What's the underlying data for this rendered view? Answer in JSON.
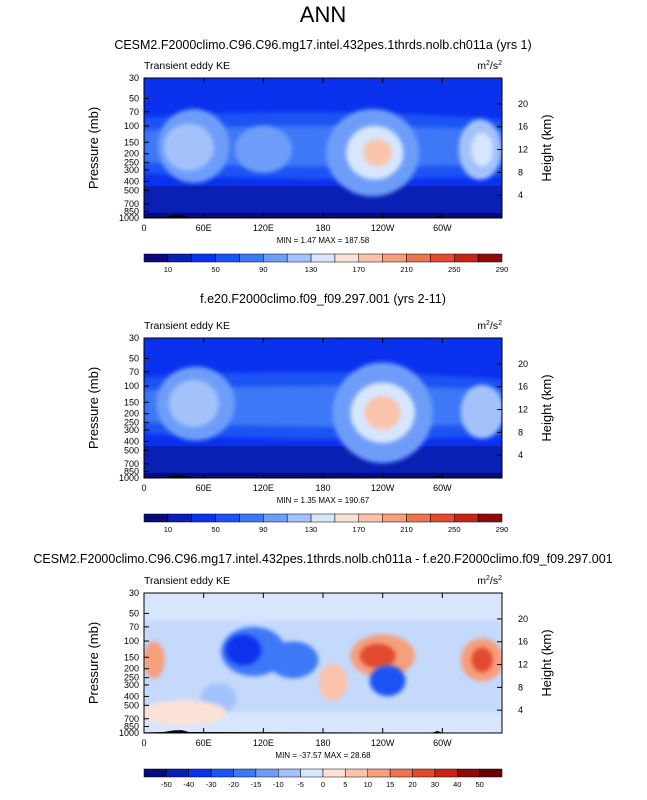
{
  "page": {
    "title": "ANN"
  },
  "colors": {
    "bg_blue": "#0a31ee",
    "dark_blue": "#0a1f9e",
    "ground": "#000000",
    "levels_abs": [
      "#0a0a7a",
      "#0a1fb4",
      "#0a31ee",
      "#1b53f4",
      "#3d78f7",
      "#6e9df9",
      "#a3c2fb",
      "#d7e6fd",
      "#fbe2d5",
      "#fbc3ab",
      "#f59f7c",
      "#ed7450",
      "#e34a2e",
      "#c82518",
      "#8f0a0a"
    ],
    "levels_diff": [
      "#0a0a7a",
      "#0a1fb4",
      "#0a31ee",
      "#1b53f4",
      "#3d78f7",
      "#6e9df9",
      "#a3c2fb",
      "#d7e6fd",
      "#fbe2d5",
      "#fbc3ab",
      "#f59f7c",
      "#ed7450",
      "#e34a2e",
      "#c82518",
      "#8f0a0a"
    ]
  },
  "chart_data": [
    {
      "type": "heatmap",
      "title": "CESM2.F2000climo.C96.C96.mg17.intel.432pes.1thrds.nolb.ch011a (yrs 1)",
      "left_label": "Transient eddy KE",
      "units_base": "m",
      "units_sup1": "2",
      "units_mid": "/s",
      "units_sup2": "2",
      "ylabel": "Pressure (mb)",
      "ylabel_right": "Height (km)",
      "x_ticks": [
        "0",
        "60E",
        "120E",
        "180",
        "120W",
        "60W"
      ],
      "x_values": [
        0,
        60,
        120,
        180,
        240,
        300
      ],
      "xlim": [
        0,
        360
      ],
      "y_ticks": [
        "30",
        "50",
        "70",
        "100",
        "150",
        "200",
        "250",
        "300",
        "400",
        "500",
        "700",
        "850",
        "1000"
      ],
      "y_values": [
        30,
        50,
        70,
        100,
        150,
        200,
        250,
        300,
        400,
        500,
        700,
        850,
        1000
      ],
      "ylim": [
        30,
        1000
      ],
      "height_ticks": [
        "20",
        "16",
        "12",
        "8",
        "4"
      ],
      "height_values": [
        20,
        16,
        12,
        8,
        4
      ],
      "stats": "MIN =   1.47  MAX = 187.58",
      "colorbar_labels": [
        "10",
        "50",
        "90",
        "130",
        "170",
        "210",
        "250",
        "290"
      ],
      "colorbar_values": [
        10,
        50,
        90,
        130,
        170,
        210,
        250,
        290
      ],
      "min": 1.47,
      "max": 187.58
    },
    {
      "type": "heatmap",
      "title": "f.e20.F2000climo.f09_f09.297.001 (yrs 2-11)",
      "left_label": "Transient eddy KE",
      "units_base": "m",
      "units_sup1": "2",
      "units_mid": "/s",
      "units_sup2": "2",
      "ylabel": "Pressure (mb)",
      "ylabel_right": "Height (km)",
      "x_ticks": [
        "0",
        "60E",
        "120E",
        "180",
        "120W",
        "60W"
      ],
      "x_values": [
        0,
        60,
        120,
        180,
        240,
        300
      ],
      "xlim": [
        0,
        360
      ],
      "y_ticks": [
        "30",
        "50",
        "70",
        "100",
        "150",
        "200",
        "250",
        "300",
        "400",
        "500",
        "700",
        "850",
        "1000"
      ],
      "y_values": [
        30,
        50,
        70,
        100,
        150,
        200,
        250,
        300,
        400,
        500,
        700,
        850,
        1000
      ],
      "ylim": [
        30,
        1000
      ],
      "height_ticks": [
        "20",
        "16",
        "12",
        "8",
        "4"
      ],
      "height_values": [
        20,
        16,
        12,
        8,
        4
      ],
      "stats": "MIN =   1.35  MAX = 190.67",
      "colorbar_labels": [
        "10",
        "50",
        "90",
        "130",
        "170",
        "210",
        "250",
        "290"
      ],
      "colorbar_values": [
        10,
        50,
        90,
        130,
        170,
        210,
        250,
        290
      ],
      "min": 1.35,
      "max": 190.67
    },
    {
      "type": "heatmap",
      "title": "CESM2.F2000climo.C96.C96.mg17.intel.432pes.1thrds.nolb.ch011a - f.e20.F2000climo.f09_f09.297.001",
      "left_label": "Transient eddy KE",
      "units_base": "m",
      "units_sup1": "2",
      "units_mid": "/s",
      "units_sup2": "2",
      "ylabel": "Pressure (mb)",
      "ylabel_right": "Height (km)",
      "x_ticks": [
        "0",
        "60E",
        "120E",
        "180",
        "120W",
        "60W"
      ],
      "x_values": [
        0,
        60,
        120,
        180,
        240,
        300
      ],
      "xlim": [
        0,
        360
      ],
      "y_ticks": [
        "30",
        "50",
        "70",
        "100",
        "150",
        "200",
        "250",
        "300",
        "400",
        "500",
        "700",
        "850",
        "1000"
      ],
      "y_values": [
        30,
        50,
        70,
        100,
        150,
        200,
        250,
        300,
        400,
        500,
        700,
        850,
        1000
      ],
      "ylim": [
        30,
        1000
      ],
      "height_ticks": [
        "20",
        "16",
        "12",
        "8",
        "4"
      ],
      "height_values": [
        20,
        16,
        12,
        8,
        4
      ],
      "stats": "MIN = -37.57  MAX =  28.68",
      "colorbar_labels": [
        "-50",
        "-40",
        "-30",
        "-20",
        "-15",
        "-10",
        "-5",
        "0",
        "5",
        "10",
        "15",
        "20",
        "30",
        "40",
        "50"
      ],
      "colorbar_values": [
        -50,
        -40,
        -30,
        -20,
        -15,
        -10,
        -5,
        0,
        5,
        10,
        15,
        20,
        30,
        40,
        50
      ],
      "min": -37.57,
      "max": 28.68
    }
  ]
}
